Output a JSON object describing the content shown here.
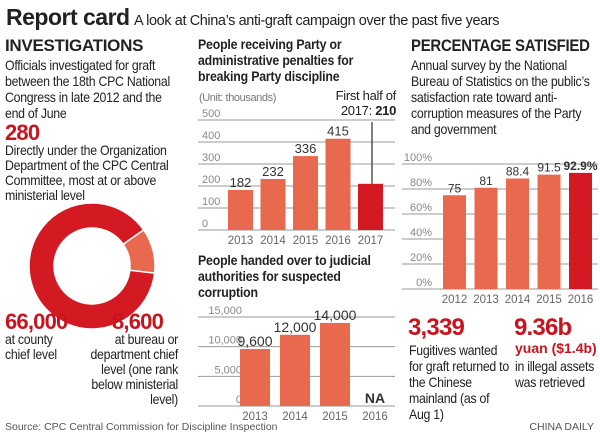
{
  "header": {
    "title": "Report card",
    "subtitle": "A look at China’s anti-graft campaign over the past five years"
  },
  "investigations": {
    "heading": "INVESTIGATIONS",
    "description": "Officials investigated for graft between the 18th CPC National Congress in late 2012 and the end of June",
    "top": {
      "value": "280",
      "text": "Directly under the Organization Department of the CPC Central Committee, most at or above ministerial level"
    },
    "county": {
      "value": "66,000",
      "text": "at county chief level"
    },
    "bureau": {
      "value": "8,600",
      "text": "at bureau or department chief level (one rank below ministerial level)"
    }
  },
  "footer": {
    "source": "Source: CPC Central Commission for Discipline Inspection",
    "brand": "CHINA DAILY"
  },
  "stats": {
    "fugitives": {
      "value": "3,339",
      "text": "Fugitives wanted for graft returned to the Chinese mainland (as of Aug 1)"
    },
    "assets": {
      "value": "9.36b",
      "unit": "yuan ($1.4b)",
      "text": "in illegal assets was retrieved"
    }
  },
  "colors": {
    "bar": "#e8694e",
    "highlight": "#d31a22",
    "donut_main": "#d31a22",
    "donut_slice": "#e8694e",
    "accent_text": "#c8141e"
  },
  "chart_data": [
    {
      "type": "bar",
      "title": "People receiving Party or administrative penalties for breaking Party discipline",
      "unit_label": "(Unit: thousands)",
      "annotation": {
        "prefix": "First half of",
        "label": "2017:",
        "value": "210"
      },
      "categories": [
        "2013",
        "2014",
        "2015",
        "2016",
        "2017"
      ],
      "values": [
        182,
        232,
        336,
        415,
        210
      ],
      "data_labels": [
        "182",
        "232",
        "336",
        "415",
        ""
      ],
      "highlight": "2017",
      "ylim": [
        0,
        500
      ],
      "yticks": [
        "0",
        "100",
        "200",
        "300",
        "400",
        "500"
      ],
      "grid": true
    },
    {
      "type": "bar",
      "title": "People handed over to judicial authorities for suspected corruption",
      "categories": [
        "2013",
        "2014",
        "2015",
        "2016"
      ],
      "values": [
        9600,
        12000,
        14000,
        null
      ],
      "data_labels": [
        "9,600",
        "12,000",
        "14,000",
        "NA"
      ],
      "ylim": [
        0,
        15000
      ],
      "yticks": [
        "0",
        "5,000",
        "10,000",
        "15,000"
      ],
      "grid": true
    },
    {
      "type": "bar",
      "title": "PERCENTAGE SATISFIED",
      "subtitle": "Annual survey by the National Bureau of Statistics on the public’s satisfaction rate toward anti-corruption measures of the Party and government",
      "categories": [
        "2012",
        "2013",
        "2014",
        "2015",
        "2016"
      ],
      "values": [
        75,
        81,
        88.4,
        91.5,
        92.9
      ],
      "data_labels": [
        "75",
        "81",
        "88.4",
        "91.5",
        "92.9%"
      ],
      "highlight": "2016",
      "ylim": [
        0,
        100
      ],
      "yticks": [
        "0%",
        "20%",
        "40%",
        "60%",
        "80%",
        "100%"
      ],
      "grid": true
    },
    {
      "type": "pie",
      "style": "donut",
      "categories": [
        "county chief level",
        "bureau or department chief level"
      ],
      "values": [
        66000,
        8600
      ]
    }
  ]
}
